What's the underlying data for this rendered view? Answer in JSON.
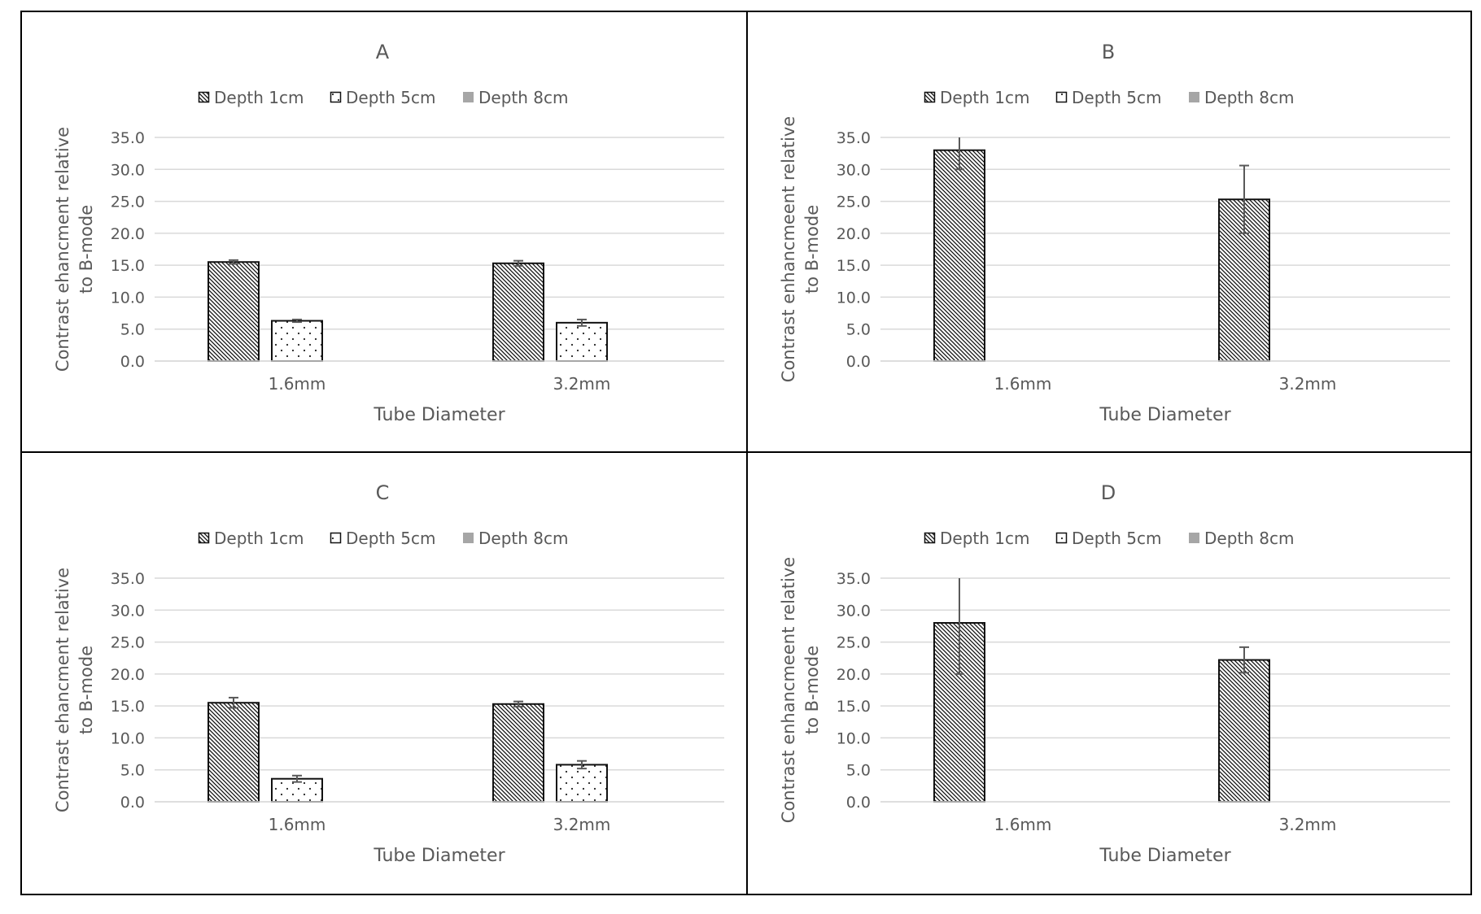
{
  "chart_data": [
    {
      "type": "bar",
      "panel": "A",
      "title": "A",
      "categories": [
        "1.6mm",
        "3.2mm"
      ],
      "xlabel": "Tube Diameter",
      "ylabel_lines": [
        "Contrast ehancment relative",
        "to B-mode"
      ],
      "ylim": [
        0,
        35
      ],
      "yticks": [
        "0.0",
        "5.0",
        "10.0",
        "15.0",
        "20.0",
        "25.0",
        "30.0",
        "35.0"
      ],
      "legend_position": "top",
      "series": [
        {
          "name": "Depth 1cm",
          "pattern": "hatch",
          "values": [
            15.5,
            15.3
          ],
          "errors": [
            0.3,
            0.4
          ]
        },
        {
          "name": "Depth 5cm",
          "pattern": "dots",
          "values": [
            6.3,
            6.0
          ],
          "errors": [
            0.2,
            0.5
          ]
        },
        {
          "name": "Depth 8cm",
          "pattern": "solid",
          "values": [
            null,
            null
          ],
          "errors": [
            null,
            null
          ]
        }
      ]
    },
    {
      "type": "bar",
      "panel": "B",
      "title": "B",
      "categories": [
        "1.6mm",
        "3.2mm"
      ],
      "xlabel": "Tube Diameter",
      "ylabel_lines": [
        "Contrast enhancmeent  relative",
        "to B-mode"
      ],
      "ylim": [
        0,
        35
      ],
      "yticks": [
        "0.0",
        "5.0",
        "10.0",
        "15.0",
        "20.0",
        "25.0",
        "30.0",
        "35.0"
      ],
      "legend_position": "top",
      "series": [
        {
          "name": "Depth 1cm",
          "pattern": "hatch",
          "values": [
            33.0,
            25.3
          ],
          "errors": [
            3.0,
            5.3
          ]
        },
        {
          "name": "Depth 5cm",
          "pattern": "dots",
          "values": [
            null,
            null
          ],
          "errors": [
            null,
            null
          ]
        },
        {
          "name": "Depth 8cm",
          "pattern": "solid",
          "values": [
            null,
            null
          ],
          "errors": [
            null,
            null
          ]
        }
      ]
    },
    {
      "type": "bar",
      "panel": "C",
      "title": "C",
      "categories": [
        "1.6mm",
        "3.2mm"
      ],
      "xlabel": "Tube Diameter",
      "ylabel_lines": [
        "Contrast ehancment relative",
        "to B-mode"
      ],
      "ylim": [
        0,
        35
      ],
      "yticks": [
        "0.0",
        "5.0",
        "10.0",
        "15.0",
        "20.0",
        "25.0",
        "30.0",
        "35.0"
      ],
      "legend_position": "top",
      "series": [
        {
          "name": "Depth 1cm",
          "pattern": "hatch",
          "values": [
            15.5,
            15.3
          ],
          "errors": [
            0.8,
            0.4
          ]
        },
        {
          "name": "Depth 5cm",
          "pattern": "dots",
          "values": [
            3.6,
            5.8
          ],
          "errors": [
            0.5,
            0.6
          ]
        },
        {
          "name": "Depth 8cm",
          "pattern": "solid",
          "values": [
            null,
            null
          ],
          "errors": [
            null,
            null
          ]
        }
      ]
    },
    {
      "type": "bar",
      "panel": "D",
      "title": "D",
      "categories": [
        "1.6mm",
        "3.2mm"
      ],
      "xlabel": "Tube Diameter",
      "ylabel_lines": [
        "Contrast enhancmeent  relative",
        "to B-mode"
      ],
      "ylim": [
        0,
        35
      ],
      "yticks": [
        "0.0",
        "5.0",
        "10.0",
        "15.0",
        "20.0",
        "25.0",
        "30.0",
        "35.0"
      ],
      "legend_position": "top",
      "series": [
        {
          "name": "Depth 1cm",
          "pattern": "hatch",
          "values": [
            28.0,
            22.2
          ],
          "errors": [
            8.0,
            2.0
          ]
        },
        {
          "name": "Depth 5cm",
          "pattern": "dots",
          "values": [
            null,
            null
          ],
          "errors": [
            null,
            null
          ]
        },
        {
          "name": "Depth 8cm",
          "pattern": "solid",
          "values": [
            null,
            null
          ],
          "errors": [
            null,
            null
          ]
        }
      ]
    }
  ]
}
